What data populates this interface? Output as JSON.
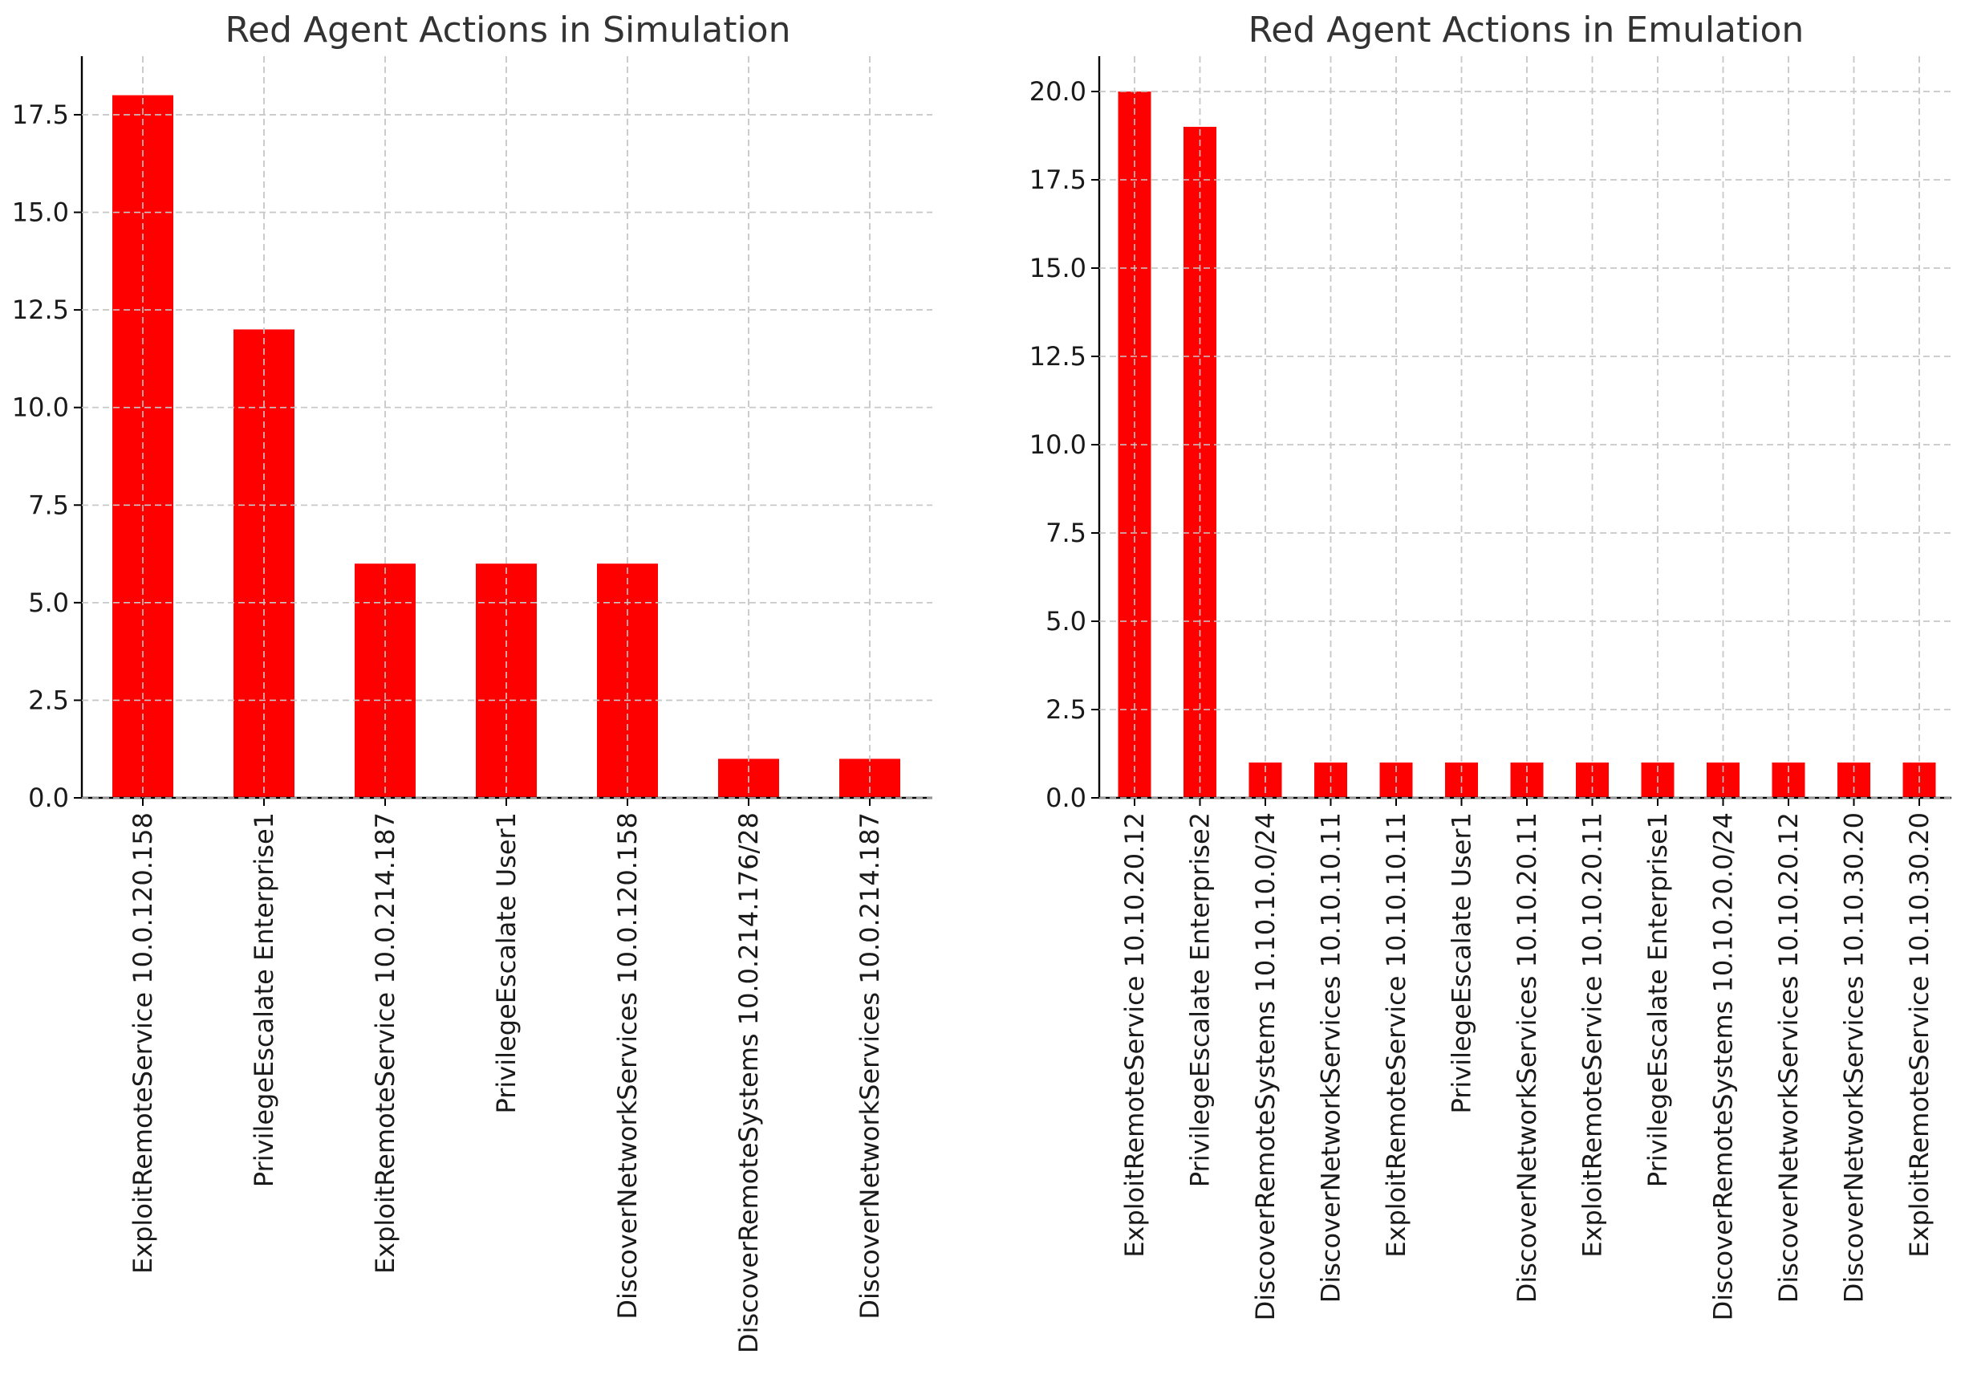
{
  "chart_data": [
    {
      "type": "bar",
      "title": "Red Agent Actions in Simulation",
      "xlabel": "",
      "ylabel": "",
      "ylim": [
        0,
        19
      ],
      "yticks": [
        "0.0",
        "2.5",
        "5.0",
        "7.5",
        "10.0",
        "12.5",
        "15.0",
        "17.5"
      ],
      "grid": true,
      "bar_color": "#ff0000",
      "categories": [
        "ExploitRemoteService 10.0.120.158",
        "PrivilegeEscalate Enterprise1",
        "ExploitRemoteService 10.0.214.187",
        "PrivilegeEscalate User1",
        "DiscoverNetworkServices 10.0.120.158",
        "DiscoverRemoteSystems 10.0.214.176/28",
        "DiscoverNetworkServices 10.0.214.187"
      ],
      "values": [
        18,
        12,
        6,
        6,
        6,
        1,
        1
      ]
    },
    {
      "type": "bar",
      "title": "Red Agent Actions in Emulation",
      "xlabel": "",
      "ylabel": "",
      "ylim": [
        0,
        21
      ],
      "yticks": [
        "0.0",
        "2.5",
        "5.0",
        "7.5",
        "10.0",
        "12.5",
        "15.0",
        "17.5",
        "20.0"
      ],
      "grid": true,
      "bar_color": "#ff0000",
      "categories": [
        "ExploitRemoteService 10.10.20.12",
        "PrivilegeEscalate Enterprise2",
        "DiscoverRemoteSystems 10.10.10.0/24",
        "DiscoverNetworkServices 10.10.10.11",
        "ExploitRemoteService 10.10.10.11",
        "PrivilegeEscalate User1",
        "DiscoverNetworkServices 10.10.20.11",
        "ExploitRemoteService 10.10.20.11",
        "PrivilegeEscalate Enterprise1",
        "DiscoverRemoteSystems 10.10.20.0/24",
        "DiscoverNetworkServices 10.10.20.12",
        "DiscoverNetworkServices 10.10.30.20",
        "ExploitRemoteService 10.10.30.20"
      ],
      "values": [
        20,
        19,
        1,
        1,
        1,
        1,
        1,
        1,
        1,
        1,
        1,
        1,
        1
      ]
    }
  ]
}
